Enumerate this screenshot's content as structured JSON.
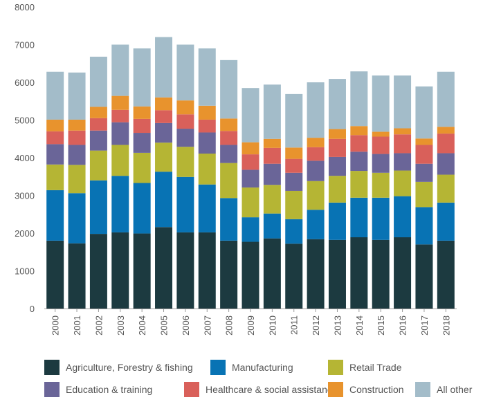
{
  "chart_data": {
    "type": "bar",
    "stacked": true,
    "title": "",
    "xlabel": "",
    "ylabel": "",
    "ylim": [
      0,
      8000
    ],
    "yticks": [
      "0",
      "1000",
      "2000",
      "3000",
      "4000",
      "5000",
      "6000",
      "7000",
      "8000"
    ],
    "grid": false,
    "legend_position": "bottom",
    "categories": [
      "2000",
      "2001",
      "2002",
      "2003",
      "2004",
      "2005",
      "2006",
      "2007",
      "2008",
      "2009",
      "2010",
      "2011",
      "2012",
      "2013",
      "2014",
      "2015",
      "2016",
      "2017",
      "2018"
    ],
    "series": [
      {
        "name": "Agriculture, Forestry & fishing",
        "color": "#1c3a40",
        "values": [
          1800,
          1730,
          1980,
          2020,
          1990,
          2160,
          2020,
          2020,
          1800,
          1770,
          1860,
          1720,
          1840,
          1820,
          1890,
          1820,
          1890,
          1700,
          1800
        ]
      },
      {
        "name": "Manufacturing",
        "color": "#0873b4",
        "values": [
          1340,
          1330,
          1420,
          1500,
          1340,
          1470,
          1470,
          1270,
          1130,
          650,
          660,
          650,
          780,
          990,
          1050,
          1120,
          1090,
          990,
          1010
        ]
      },
      {
        "name": "Retail Trade",
        "color": "#b5b534",
        "values": [
          680,
          750,
          790,
          820,
          800,
          770,
          800,
          820,
          930,
          790,
          760,
          750,
          760,
          710,
          710,
          660,
          680,
          670,
          740
        ]
      },
      {
        "name": "Education & training",
        "color": "#6a6598",
        "values": [
          540,
          530,
          530,
          600,
          530,
          520,
          480,
          560,
          480,
          470,
          560,
          480,
          540,
          500,
          510,
          500,
          460,
          480,
          570
        ]
      },
      {
        "name": "Healthcare & social assistance",
        "color": "#d9605a",
        "values": [
          340,
          380,
          330,
          330,
          370,
          340,
          380,
          340,
          370,
          410,
          420,
          370,
          360,
          480,
          440,
          460,
          500,
          500,
          520
        ]
      },
      {
        "name": "Construction",
        "color": "#e8932d",
        "values": [
          310,
          290,
          300,
          370,
          330,
          340,
          370,
          370,
          330,
          320,
          240,
          300,
          250,
          260,
          240,
          130,
          160,
          170,
          180
        ]
      },
      {
        "name": "All other",
        "color": "#a3bcc9",
        "values": [
          1270,
          1250,
          1330,
          1360,
          1540,
          1600,
          1480,
          1520,
          1550,
          1440,
          1440,
          1420,
          1470,
          1330,
          1450,
          1490,
          1400,
          1380,
          1460
        ]
      }
    ]
  }
}
